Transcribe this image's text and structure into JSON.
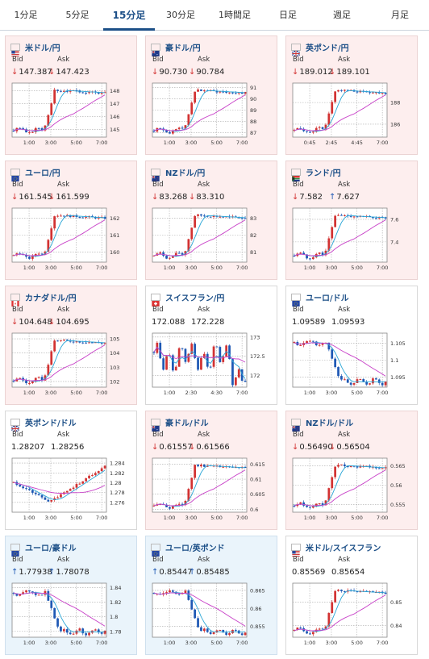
{
  "tabs": [
    {
      "label": "1分足",
      "active": false
    },
    {
      "label": "5分足",
      "active": false
    },
    {
      "label": "15分足",
      "active": true
    },
    {
      "label": "30分足",
      "active": false
    },
    {
      "label": "1時間足",
      "active": false
    },
    {
      "label": "日足",
      "active": false
    },
    {
      "label": "週足",
      "active": false
    },
    {
      "label": "月足",
      "active": false
    }
  ],
  "labels": {
    "bid": "Bid",
    "ask": "Ask"
  },
  "colors": {
    "up": "#1e58b4",
    "down": "#d23232",
    "ma_fast": "#2aa6d6",
    "ma_slow": "#c840c8",
    "link": "#1c4f87"
  },
  "cards": [
    {
      "pair": "米ドル/円",
      "flag": "us-jp",
      "bg": "pink",
      "bid": "147.387",
      "ask": "147.423",
      "bid_dir": "down",
      "ask_dir": "down",
      "chart_data": {
        "type": "candlestick",
        "x_ticks": [
          "1:00",
          "3:00",
          "5:00",
          "7:00"
        ],
        "y_ticks": [
          "145",
          "146",
          "147",
          "148"
        ],
        "ylim": [
          144.4,
          148.6
        ],
        "shape": "jump-up"
      }
    },
    {
      "pair": "豪ドル/円",
      "flag": "au-jp",
      "bg": "pink",
      "bid": "90.730",
      "ask": "90.784",
      "bid_dir": "down",
      "ask_dir": "down",
      "chart_data": {
        "type": "candlestick",
        "x_ticks": [
          "1:00",
          "3:00",
          "5:00",
          "7:00"
        ],
        "y_ticks": [
          "87",
          "88",
          "89",
          "90",
          "91"
        ],
        "ylim": [
          86.6,
          91.4
        ],
        "shape": "jump-up"
      }
    },
    {
      "pair": "英ポンド/円",
      "flag": "gb-jp",
      "bg": "pink",
      "bid": "189.012",
      "ask": "189.101",
      "bid_dir": "down",
      "ask_dir": "down",
      "chart_data": {
        "type": "candlestick",
        "x_ticks": [
          "0:45",
          "2:45",
          "4:45",
          "7:00"
        ],
        "y_ticks": [
          "186",
          "188"
        ],
        "ylim": [
          184.8,
          189.8
        ],
        "shape": "jump-up"
      }
    },
    {
      "pair": "ユーロ/円",
      "flag": "eu-jp",
      "bg": "pink",
      "bid": "161.545",
      "ask": "161.599",
      "bid_dir": "down",
      "ask_dir": "down",
      "chart_data": {
        "type": "candlestick",
        "x_ticks": [
          "1:00",
          "3:00",
          "5:00",
          "7:00"
        ],
        "y_ticks": [
          "160",
          "161",
          "162"
        ],
        "ylim": [
          159.4,
          162.6
        ],
        "shape": "jump-up"
      }
    },
    {
      "pair": "NZドル/円",
      "flag": "nz-jp",
      "bg": "pink",
      "bid": "83.268",
      "ask": "83.310",
      "bid_dir": "down",
      "ask_dir": "down",
      "chart_data": {
        "type": "candlestick",
        "x_ticks": [
          "1:00",
          "3:00",
          "5:00",
          "7:00"
        ],
        "y_ticks": [
          "81",
          "82",
          "83"
        ],
        "ylim": [
          80.4,
          83.6
        ],
        "shape": "jump-up"
      }
    },
    {
      "pair": "ランド/円",
      "flag": "za-jp",
      "bg": "pink",
      "bid": "7.582",
      "ask": "7.627",
      "bid_dir": "down",
      "ask_dir": "up",
      "chart_data": {
        "type": "candlestick",
        "x_ticks": [
          "1:00",
          "3:00",
          "5:00",
          "7:00"
        ],
        "y_ticks": [
          "7.4",
          "7.6"
        ],
        "ylim": [
          7.22,
          7.7
        ],
        "shape": "jump-up"
      }
    },
    {
      "pair": "カナダドル/円",
      "flag": "ca-jp",
      "bg": "pink",
      "bid": "104.648",
      "ask": "104.695",
      "bid_dir": "down",
      "ask_dir": "down",
      "chart_data": {
        "type": "candlestick",
        "x_ticks": [
          "1:00",
          "3:00",
          "5:00",
          "7:00"
        ],
        "y_ticks": [
          "102",
          "103",
          "104",
          "105"
        ],
        "ylim": [
          101.6,
          105.4
        ],
        "shape": "jump-up"
      }
    },
    {
      "pair": "スイスフラン/円",
      "flag": "ch-jp",
      "bg": "white",
      "bid": "172.088",
      "ask": "172.228",
      "bid_dir": "none",
      "ask_dir": "none",
      "chart_data": {
        "type": "candlestick",
        "x_ticks": [
          "1:00",
          "2:30",
          "4:30",
          "7:00"
        ],
        "y_ticks": [
          "172",
          "172.5",
          "173"
        ],
        "ylim": [
          171.7,
          173.1
        ],
        "shape": "choppy"
      }
    },
    {
      "pair": "ユーロ/ドル",
      "flag": "eu-us",
      "bg": "white",
      "bid": "1.09589",
      "ask": "1.09593",
      "bid_dir": "none",
      "ask_dir": "none",
      "chart_data": {
        "type": "candlestick",
        "x_ticks": [
          "1:00",
          "3:00",
          "5:00",
          "7:00"
        ],
        "y_ticks": [
          "1.095",
          "1.1",
          "1.105"
        ],
        "ylim": [
          1.092,
          1.108
        ],
        "shape": "drop-down"
      }
    },
    {
      "pair": "英ポンド/ドル",
      "flag": "gb-us",
      "bg": "white",
      "bid": "1.28207",
      "ask": "1.28256",
      "bid_dir": "none",
      "ask_dir": "none",
      "chart_data": {
        "type": "candlestick",
        "x_ticks": [
          "1:00",
          "3:00",
          "5:00",
          "7:00"
        ],
        "y_ticks": [
          "1.276",
          "1.278",
          "1.28",
          "1.282",
          "1.284"
        ],
        "ylim": [
          1.274,
          1.285
        ],
        "shape": "v-up"
      }
    },
    {
      "pair": "豪ドル/ドル",
      "flag": "au-us",
      "bg": "pink",
      "bid": "0.61557",
      "ask": "0.61566",
      "bid_dir": "down",
      "ask_dir": "down",
      "chart_data": {
        "type": "candlestick",
        "x_ticks": [
          "1:00",
          "3:00",
          "5:00",
          "7:00"
        ],
        "y_ticks": [
          "0.6",
          "0.605",
          "0.61",
          "0.615"
        ],
        "ylim": [
          0.599,
          0.617
        ],
        "shape": "jump-up"
      }
    },
    {
      "pair": "NZドル/ドル",
      "flag": "nz-us",
      "bg": "pink",
      "bid": "0.56490",
      "ask": "0.56504",
      "bid_dir": "down",
      "ask_dir": "down",
      "chart_data": {
        "type": "candlestick",
        "x_ticks": [
          "1:00",
          "3:00",
          "5:00",
          "7:00"
        ],
        "y_ticks": [
          "0.555",
          "0.56",
          "0.565"
        ],
        "ylim": [
          0.553,
          0.567
        ],
        "shape": "jump-up"
      }
    },
    {
      "pair": "ユーロ/豪ドル",
      "flag": "eu-au",
      "bg": "blue",
      "bid": "1.77938",
      "ask": "1.78078",
      "bid_dir": "up",
      "ask_dir": "up",
      "chart_data": {
        "type": "candlestick",
        "x_ticks": [
          "1:00",
          "3:00",
          "5:00",
          "7:00"
        ],
        "y_ticks": [
          "1.78",
          "1.8",
          "1.82",
          "1.84"
        ],
        "ylim": [
          1.772,
          1.846
        ],
        "shape": "drop-down"
      }
    },
    {
      "pair": "ユーロ/英ポンド",
      "flag": "eu-gb",
      "bg": "blue",
      "bid": "0.85447",
      "ask": "0.85485",
      "bid_dir": "up",
      "ask_dir": "up",
      "chart_data": {
        "type": "candlestick",
        "x_ticks": [
          "1:00",
          "3:00",
          "5:00",
          "7:00"
        ],
        "y_ticks": [
          "0.855",
          "0.86",
          "0.865"
        ],
        "ylim": [
          0.852,
          0.867
        ],
        "shape": "drop-down"
      }
    },
    {
      "pair": "米ドル/スイスフラン",
      "flag": "us-ch",
      "bg": "white",
      "bid": "0.85569",
      "ask": "0.85654",
      "bid_dir": "none",
      "ask_dir": "none",
      "chart_data": {
        "type": "candlestick",
        "x_ticks": [
          "1:00",
          "3:00",
          "5:00",
          "7:00"
        ],
        "y_ticks": [
          "0.84",
          "0.85"
        ],
        "ylim": [
          0.835,
          0.858
        ],
        "shape": "jump-up"
      }
    }
  ]
}
